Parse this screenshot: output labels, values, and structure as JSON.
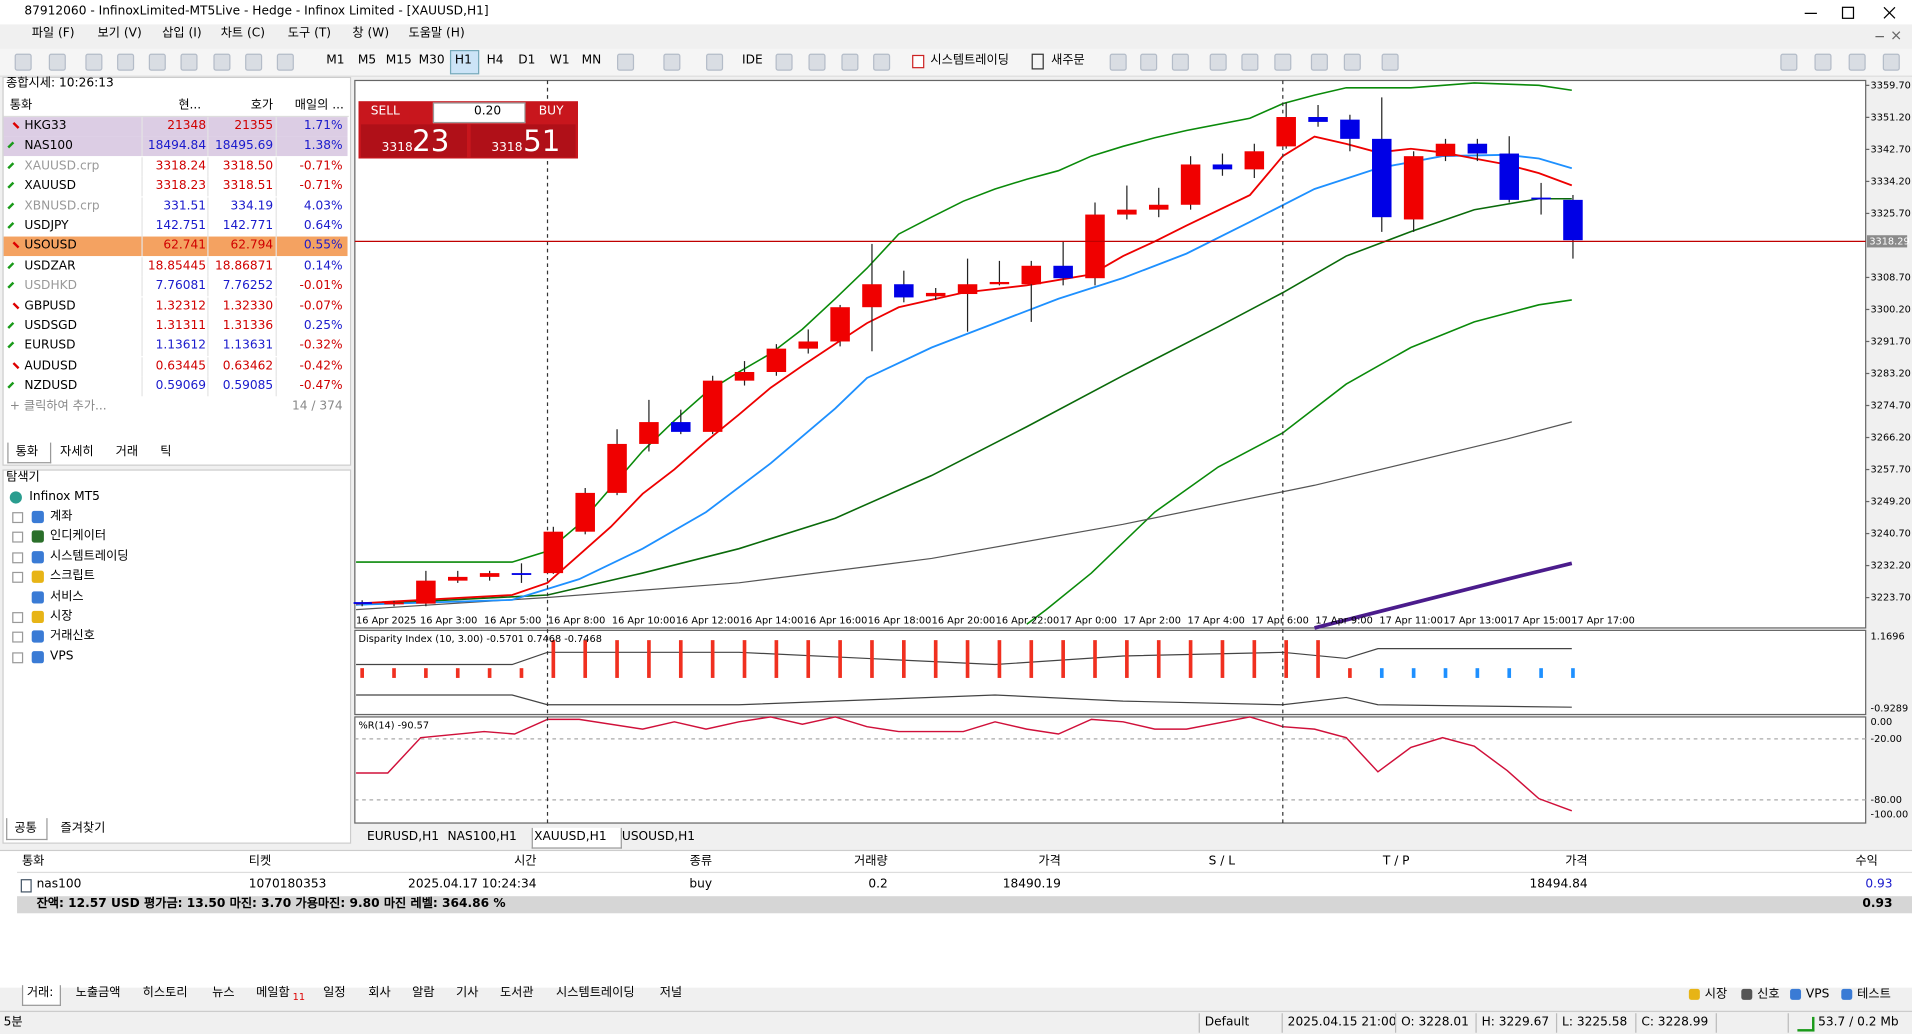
{
  "window": {
    "title": "87912060 - InfinoxLimited-MT5Live - Hedge - Infinox Limited - [XAUUSD,H1]"
  },
  "menu": [
    "파일 (F)",
    "보기 (V)",
    "삽입 (I)",
    "차트 (C)",
    "도구 (T)",
    "창 (W)",
    "도움말 (H)"
  ],
  "toolbar": {
    "timeframes": [
      "M1",
      "M5",
      "M15",
      "M30",
      "H1",
      "H4",
      "D1",
      "W1",
      "MN"
    ],
    "active_timeframe": "H1",
    "ide": "IDE",
    "algo": "시스템트레이딩",
    "new_order": "새주문"
  },
  "market_watch": {
    "title": "종합시세: 10:26:13",
    "columns": [
      "통화",
      "현...",
      "호가",
      "매일의 ..."
    ],
    "rows": [
      [
        "HKG33",
        "21348",
        "21355",
        "1.71%"
      ],
      [
        "NAS100",
        "18494.84",
        "18495.69",
        "1.38%"
      ],
      [
        "XAUUSD.crp",
        "3318.24",
        "3318.50",
        "-0.71%"
      ],
      [
        "XAUUSD",
        "3318.23",
        "3318.51",
        "-0.71%"
      ],
      [
        "XBNUSD.crp",
        "331.51",
        "334.19",
        "4.03%"
      ],
      [
        "USDJPY",
        "142.751",
        "142.771",
        "0.64%"
      ],
      [
        "USOUSD",
        "62.741",
        "62.794",
        "0.55%"
      ],
      [
        "USDZAR",
        "18.85445",
        "18.86871",
        "0.14%"
      ],
      [
        "USDHKD",
        "7.76081",
        "7.76252",
        "-0.01%"
      ],
      [
        "GBPUSD",
        "1.32312",
        "1.32330",
        "-0.07%"
      ],
      [
        "USDSGD",
        "1.31311",
        "1.31336",
        "0.25%"
      ],
      [
        "EURUSD",
        "1.13612",
        "1.13631",
        "-0.32%"
      ],
      [
        "AUDUSD",
        "0.63445",
        "0.63462",
        "-0.42%"
      ],
      [
        "NZDUSD",
        "0.59069",
        "0.59085",
        "-0.47%"
      ]
    ],
    "add": "+ 클릭하여 추가...",
    "count": "14 / 374",
    "tabs": [
      "통화",
      "자세히",
      "거래",
      "틱"
    ]
  },
  "navigator": {
    "title": "탐색기",
    "root": "Infinox MT5",
    "items": [
      "계좌",
      "인디케이터",
      "시스템트레이딩",
      "스크립트",
      "서비스",
      "시장",
      "거래신호",
      "VPS"
    ],
    "tabs": [
      "공통",
      "즐겨찾기"
    ]
  },
  "chart": {
    "trade": {
      "sell": "SELL",
      "buy": "BUY",
      "volume": "0.20",
      "sell_head": "3318",
      "sell_tail": "23",
      "buy_head": "3318",
      "buy_tail": "51"
    },
    "ylim": [
      3220.5,
      3361.0
    ],
    "yticks": [
      {
        "value": 3359.7,
        "label": "3359.70"
      },
      {
        "value": 3351.2,
        "label": "3351.20"
      },
      {
        "value": 3342.7,
        "label": "3342.70"
      },
      {
        "value": 3334.2,
        "label": "3334.20"
      },
      {
        "value": 3325.7,
        "label": "3325.70"
      },
      {
        "value": 3308.7,
        "label": "3308.70"
      },
      {
        "value": 3300.2,
        "label": "3300.20"
      },
      {
        "value": 3291.7,
        "label": "3291.70"
      },
      {
        "value": 3283.2,
        "label": "3283.20"
      },
      {
        "value": 3274.7,
        "label": "3274.70"
      },
      {
        "value": 3266.2,
        "label": "3266.20"
      },
      {
        "value": 3257.7,
        "label": "3257.70"
      },
      {
        "value": 3249.2,
        "label": "3249.20"
      },
      {
        "value": 3240.7,
        "label": "3240.70"
      },
      {
        "value": 3232.2,
        "label": "3232.20"
      },
      {
        "value": 3223.7,
        "label": "3223.70"
      }
    ],
    "current_price": 3318.29,
    "x_labels": [
      "16 Apr 2025",
      "16 Apr 3:00",
      "16 Apr 5:00",
      "16 Apr 8:00",
      "16 Apr 10:00",
      "16 Apr 12:00",
      "16 Apr 14:00",
      "16 Apr 16:00",
      "16 Apr 18:00",
      "16 Apr 20:00",
      "16 Apr 22:00",
      "17 Apr 0:00",
      "17 Apr 2:00",
      "17 Apr 4:00",
      "17 Apr 6:00",
      "17 Apr 9:00",
      "17 Apr 11:00",
      "17 Apr 13:00",
      "17 Apr 15:00",
      "17 Apr 17:00"
    ],
    "candles": [
      [
        3222.5,
        3223,
        3221.4,
        3222.1
      ],
      [
        3222.1,
        3222.8,
        3221.4,
        3222.4
      ],
      [
        3222.1,
        3230.8,
        3221.4,
        3228.2
      ],
      [
        3228.2,
        3230.8,
        3227.6,
        3229.2
      ],
      [
        3229.2,
        3230.8,
        3228.2,
        3230.2
      ],
      [
        3230.2,
        3232.8,
        3227.6,
        3230.0
      ],
      [
        3230.2,
        3242.5,
        3230.0,
        3241.2
      ],
      [
        3241.2,
        3252.8,
        3240.5,
        3251.5
      ],
      [
        3251.5,
        3268.4,
        3250.9,
        3264.5
      ],
      [
        3264.5,
        3276.2,
        3262.5,
        3270.3
      ],
      [
        3270.3,
        3273.6,
        3267.1,
        3267.7
      ],
      [
        3267.7,
        3282.6,
        3267.1,
        3281.3
      ],
      [
        3281.3,
        3286.5,
        3280.0,
        3283.6
      ],
      [
        3283.6,
        3291.0,
        3282.6,
        3289.8
      ],
      [
        3289.8,
        3294.9,
        3288.5,
        3291.7
      ],
      [
        3291.7,
        3301.4,
        3290.4,
        3300.8
      ],
      [
        3300.8,
        3317.6,
        3289.1,
        3306.9
      ],
      [
        3306.9,
        3310.5,
        3302.1,
        3303.4
      ],
      [
        3303.7,
        3305.9,
        3302.7,
        3304.6
      ],
      [
        3304.3,
        3313.7,
        3294.3,
        3306.9
      ],
      [
        3306.9,
        3313.1,
        3306.6,
        3307.5
      ],
      [
        3306.9,
        3313.1,
        3296.9,
        3311.8
      ],
      [
        3311.8,
        3318.2,
        3306.6,
        3308.5
      ],
      [
        3308.5,
        3328.6,
        3306.6,
        3325.4
      ],
      [
        3325.4,
        3333.1,
        3324.1,
        3326.7
      ],
      [
        3326.7,
        3332.5,
        3324.7,
        3328.0
      ],
      [
        3328.0,
        3340.9,
        3326.7,
        3338.7
      ],
      [
        3338.7,
        3341.6,
        3335.7,
        3337.4
      ],
      [
        3337.4,
        3344.2,
        3335.1,
        3342.2
      ],
      [
        3343.5,
        3355.2,
        3342.9,
        3351.3
      ],
      [
        3351.3,
        3354.5,
        3348.7,
        3350.0
      ],
      [
        3350.6,
        3351.9,
        3342.2,
        3345.5
      ],
      [
        3345.5,
        3356.5,
        3320.8,
        3324.7
      ],
      [
        3324.1,
        3342.2,
        3320.8,
        3340.9
      ],
      [
        3340.9,
        3345.5,
        3339.6,
        3344.2
      ],
      [
        3344.2,
        3345.5,
        3339.6,
        3341.6
      ],
      [
        3341.6,
        3346.2,
        3328.6,
        3329.3
      ],
      [
        3329.9,
        3333.8,
        3325.4,
        3329.6
      ],
      [
        3329.3,
        3330.6,
        3313.7,
        3318.6
      ]
    ],
    "sub1": {
      "label": "Disparity Index (10, 3.00) -0.5701 0.7468 -0.7468",
      "ticks": [
        "1.1696",
        "-0.9289"
      ]
    },
    "sub2": {
      "label": "%R(14) -90.57",
      "ticks": [
        "0.00",
        "-20.00",
        "-80.00",
        "-100.00"
      ]
    },
    "tabs": [
      "EURUSD,H1",
      "NAS100,H1",
      "XAUUSD,H1",
      "USOUSD,H1"
    ]
  },
  "toolbox": {
    "columns": [
      "통화",
      "티켓",
      "시간",
      "종류",
      "거래량",
      "가격",
      "S / L",
      "T / P",
      "가격",
      "수익"
    ],
    "row": {
      "symbol": "nas100",
      "ticket": "1070180353",
      "time": "2025.04.17 10:24:34",
      "type": "buy",
      "volume": "0.2",
      "open_price": "18490.19",
      "price": "18494.84",
      "profit": "0.93"
    },
    "balance": "잔액: 12.57 USD  평가금: 13.50  마진: 3.70  가용마진: 9.80  마진 레벨: 364.86 %",
    "balance_profit": "0.93",
    "tabs": [
      "거래:",
      "노출금액",
      "히스토리",
      "뉴스",
      "메일함",
      "일정",
      "회사",
      "알람",
      "기사",
      "도서관",
      "시스템트레이딩",
      "저널"
    ],
    "mail_count": "11",
    "right_tabs": [
      "시장",
      "신호",
      "VPS",
      "테스트"
    ]
  },
  "status": {
    "left": "5분",
    "profile": "Default",
    "time": "2025.04.15 21:00",
    "open": "O: 3228.01",
    "high": "H: 3229.67",
    "low": "L: 3225.58",
    "close": "C: 3228.99",
    "net": "53.7 / 0.2 Mb"
  }
}
